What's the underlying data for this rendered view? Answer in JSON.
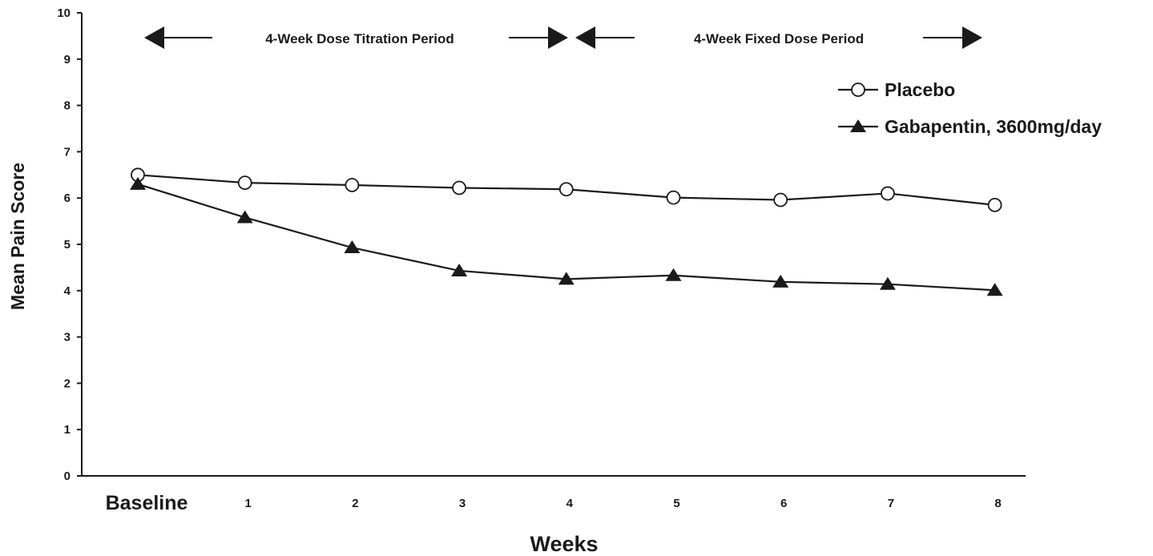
{
  "chart_data": {
    "type": "line",
    "title": "",
    "xlabel": "Weeks",
    "ylabel": "Mean Pain Score",
    "ylim": [
      0,
      10
    ],
    "yticks": [
      0,
      1,
      2,
      3,
      4,
      5,
      6,
      7,
      8,
      9,
      10
    ],
    "categories": [
      "Baseline",
      "1",
      "2",
      "3",
      "4",
      "5",
      "6",
      "7",
      "8"
    ],
    "series": [
      {
        "name": "Placebo",
        "marker": "open-circle",
        "color": "#1a1a1a",
        "values": [
          6.5,
          6.33,
          6.28,
          6.22,
          6.19,
          6.01,
          5.96,
          6.1,
          5.85
        ]
      },
      {
        "name": "Gabapentin, 3600mg/day",
        "marker": "filled-triangle",
        "color": "#1a1a1a",
        "values": [
          6.3,
          5.58,
          4.93,
          4.43,
          4.25,
          4.33,
          4.19,
          4.14,
          4.01
        ]
      }
    ],
    "legend_position": "top-right",
    "grid": false,
    "periods": [
      {
        "label": "4-Week Dose Titration Period",
        "from": "Baseline",
        "to": "4"
      },
      {
        "label": "4-Week Fixed Dose Period",
        "from": "4",
        "to": "8"
      }
    ]
  }
}
